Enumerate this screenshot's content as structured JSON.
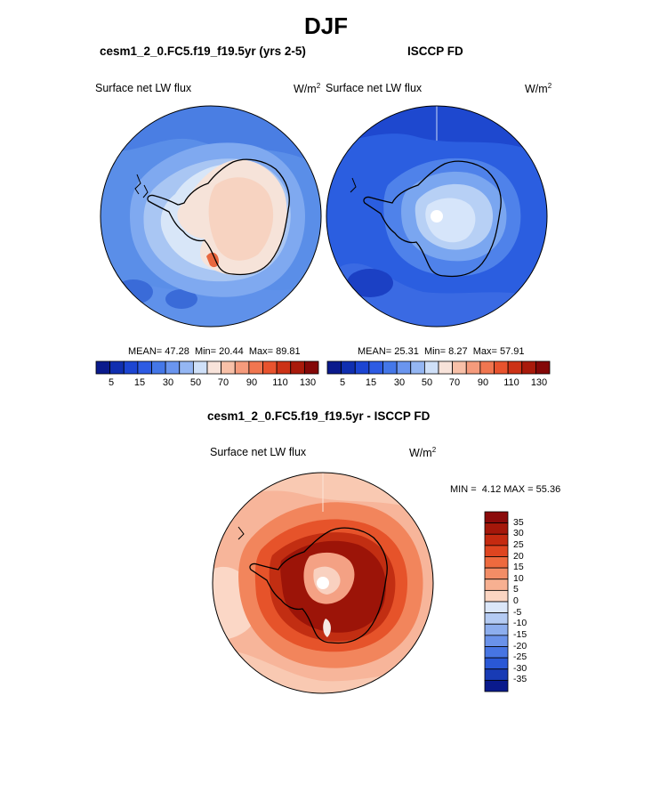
{
  "page_title": "DJF",
  "colors": {
    "blue_dark": "#0a1a8c",
    "blue_mid": "#2d5be3",
    "blue_light": "#a9c6f3",
    "neutral": "#f4e9e4",
    "red_light": "#f8b9a0",
    "red_mid": "#ee5a2c",
    "red_dark": "#8b0a0a",
    "outline": "#000000"
  },
  "panels": [
    {
      "title": "cesm1_2_0.FC5.f19_f19.5yr (yrs 2-5)",
      "variable": "Surface net LW flux",
      "units": "W/m",
      "units_exp": "2",
      "stats": {
        "mean_label": "MEAN=",
        "mean": "47.28",
        "min_label": "Min=",
        "min": "20.44",
        "max_label": "Max=",
        "max": "89.81"
      },
      "colorbar_labels": [
        "5",
        "15",
        "30",
        "50",
        "70",
        "90",
        "110",
        "130"
      ]
    },
    {
      "title": "ISCCP FD",
      "variable": "Surface net LW flux",
      "units": "W/m",
      "units_exp": "2",
      "stats": {
        "mean_label": "MEAN=",
        "mean": "25.31",
        "min_label": "Min=",
        "min": "8.27",
        "max_label": "Max=",
        "max": "57.91"
      },
      "colorbar_labels": [
        "5",
        "15",
        "30",
        "50",
        "70",
        "90",
        "110",
        "130"
      ]
    }
  ],
  "difference": {
    "title": "cesm1_2_0.FC5.f19_f19.5yr - ISCCP FD",
    "variable": "Surface net LW flux",
    "units": "W/m",
    "units_exp": "2",
    "min_label": "MIN =",
    "min": "4.12",
    "max_label": "MAX =",
    "max": "55.36",
    "colorbar_labels": [
      "35",
      "30",
      "25",
      "20",
      "15",
      "10",
      "5",
      "0",
      "-5",
      "-10",
      "-15",
      "-20",
      "-25",
      "-30",
      "-35"
    ]
  }
}
